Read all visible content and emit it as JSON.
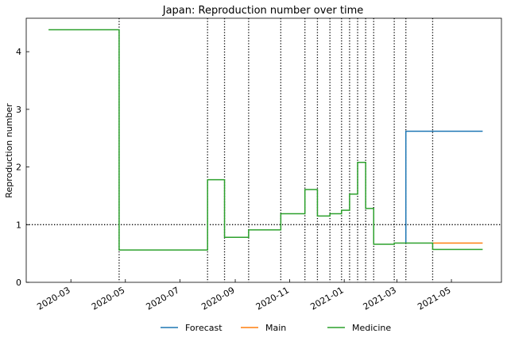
{
  "chart_data": {
    "type": "line",
    "title": "Japan: Reproduction number over time",
    "xlabel": "",
    "ylabel": "Reproduction number",
    "x_axis": {
      "type": "date",
      "range": [
        "2020-01-11",
        "2021-06-26"
      ],
      "ticks": [
        {
          "date": "2020-03-01",
          "label": "2020-03"
        },
        {
          "date": "2020-05-01",
          "label": "2020-05"
        },
        {
          "date": "2020-07-01",
          "label": "2020-07"
        },
        {
          "date": "2020-09-01",
          "label": "2020-09"
        },
        {
          "date": "2020-11-01",
          "label": "2020-11"
        },
        {
          "date": "2021-01-01",
          "label": "2021-01"
        },
        {
          "date": "2021-03-01",
          "label": "2021-03"
        },
        {
          "date": "2021-05-01",
          "label": "2021-05"
        }
      ]
    },
    "y_axis": {
      "range": [
        0,
        4.58
      ],
      "ticks": [
        0,
        1,
        2,
        3,
        4
      ]
    },
    "reference_line": {
      "y": 1.0,
      "style": "dotted"
    },
    "change_points": [
      "2020-04-24",
      "2020-08-01",
      "2020-08-20",
      "2020-09-16",
      "2020-10-22",
      "2020-11-18",
      "2020-12-02",
      "2020-12-16",
      "2020-12-29",
      "2021-01-07",
      "2021-01-16",
      "2021-01-25",
      "2021-02-03",
      "2021-02-26",
      "2021-03-11",
      "2021-04-10"
    ],
    "series": [
      {
        "name": "Forecast",
        "color": "#1f77b4",
        "dates": [
          "2021-03-11",
          "2021-03-11",
          "2021-06-05"
        ],
        "values": [
          0.68,
          2.62,
          2.62
        ]
      },
      {
        "name": "Main",
        "color": "#ff7f0e",
        "dates": [
          "2021-04-10",
          "2021-06-05"
        ],
        "values": [
          0.68,
          0.68
        ]
      },
      {
        "name": "Medicine",
        "color": "#2ca02c",
        "dates": [
          "2020-02-05",
          "2020-04-24",
          "2020-04-24",
          "2020-08-01",
          "2020-08-01",
          "2020-08-20",
          "2020-08-20",
          "2020-09-16",
          "2020-09-16",
          "2020-10-22",
          "2020-10-22",
          "2020-11-18",
          "2020-11-18",
          "2020-12-02",
          "2020-12-02",
          "2020-12-16",
          "2020-12-16",
          "2020-12-29",
          "2020-12-29",
          "2021-01-07",
          "2021-01-07",
          "2021-01-16",
          "2021-01-16",
          "2021-01-25",
          "2021-01-25",
          "2021-02-03",
          "2021-02-03",
          "2021-02-26",
          "2021-02-26",
          "2021-04-10",
          "2021-04-10",
          "2021-06-05"
        ],
        "values": [
          4.38,
          4.38,
          0.56,
          0.56,
          1.78,
          1.78,
          0.78,
          0.78,
          0.91,
          0.91,
          1.19,
          1.19,
          1.61,
          1.61,
          1.15,
          1.15,
          1.19,
          1.19,
          1.25,
          1.25,
          1.53,
          1.53,
          2.08,
          2.08,
          1.28,
          1.28,
          0.66,
          0.66,
          0.68,
          0.68,
          0.57,
          0.57
        ]
      }
    ],
    "legend": {
      "placement": "bottom-center",
      "entries": [
        "Forecast",
        "Main",
        "Medicine"
      ]
    }
  }
}
